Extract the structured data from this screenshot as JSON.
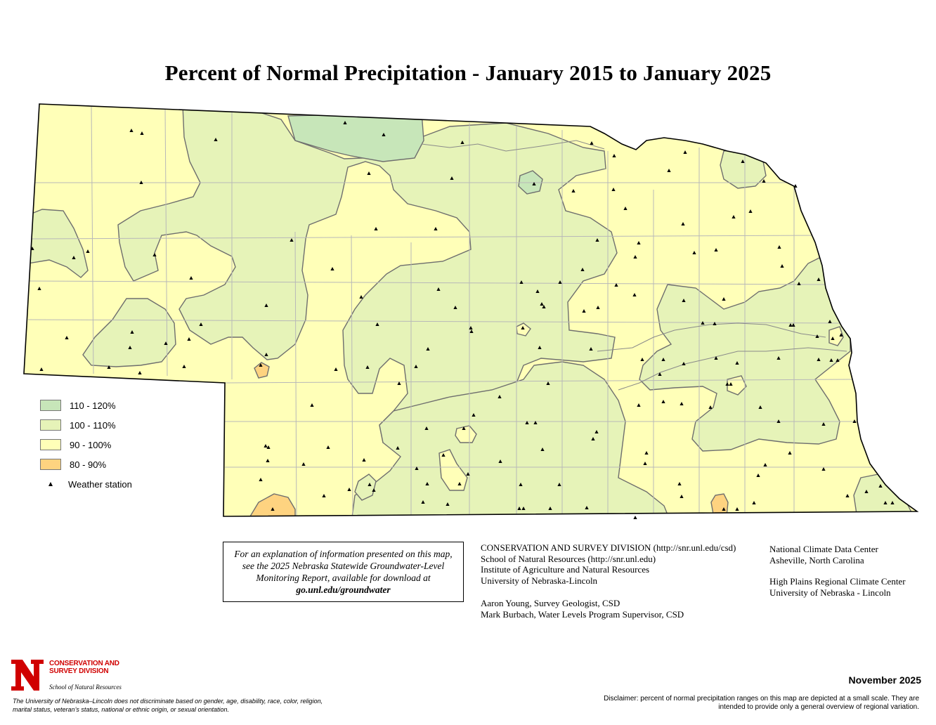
{
  "title": "Percent of Normal Precipitation - January 2015 to January 2025",
  "colors": {
    "cls_110_120": "#c7e6b9",
    "cls_100_110": "#e6f3b8",
    "cls_90_100": "#ffffb8",
    "cls_80_90": "#fed380",
    "boundary": "#6e6e6e",
    "county_line": "#b8b8b8"
  },
  "legend": {
    "items": [
      {
        "label": "110 - 120%",
        "color": "#c7e6b9"
      },
      {
        "label": "100 - 110%",
        "color": "#e6f3b8"
      },
      {
        "label": "90 - 100%",
        "color": "#ffffb8"
      },
      {
        "label": "80 - 90%",
        "color": "#fed380"
      }
    ],
    "station_label": "Weather station",
    "station_icon": "triangle-icon"
  },
  "note": {
    "text": "For an explanation of information presented on this map, see the 2025 Nebraska Statewide Groundwater-Level Monitoring Report, available for download at",
    "link": "go.unl.edu/groundwater"
  },
  "credits_left": [
    "CONSERVATION AND SURVEY DIVISION (http://snr.unl.edu/csd)",
    "School of Natural Resources (http://snr.unl.edu)",
    "Institute of Agriculture and Natural Resources",
    "University of Nebraska-Lincoln"
  ],
  "authors": [
    "Aaron Young, Survey Geologist, CSD",
    "Mark Burbach, Water Levels Program Supervisor, CSD"
  ],
  "credits_right": [
    "National Climate Data Center",
    "Asheville, North Carolina"
  ],
  "credits_right2": [
    "High Plains Regional Climate Center",
    "University of Nebraska - Lincoln"
  ],
  "logo": {
    "letter": "N",
    "line1": "CONSERVATION AND",
    "line2": "SURVEY DIVISION",
    "line3": "School of Natural Resources"
  },
  "nondiscrimination": "The University of Nebraska–Lincoln does not discriminate based on gender, age, disability, race, color, religion, marital status, veteran’s status, national or ethnic origin, or sexual orientation.",
  "date": "November 2025",
  "disclaimer": "Disclaimer: percent of normal precipitation ranges on this map are depicted at a small scale.  They are intended to provide only a general overview of regional variation."
}
